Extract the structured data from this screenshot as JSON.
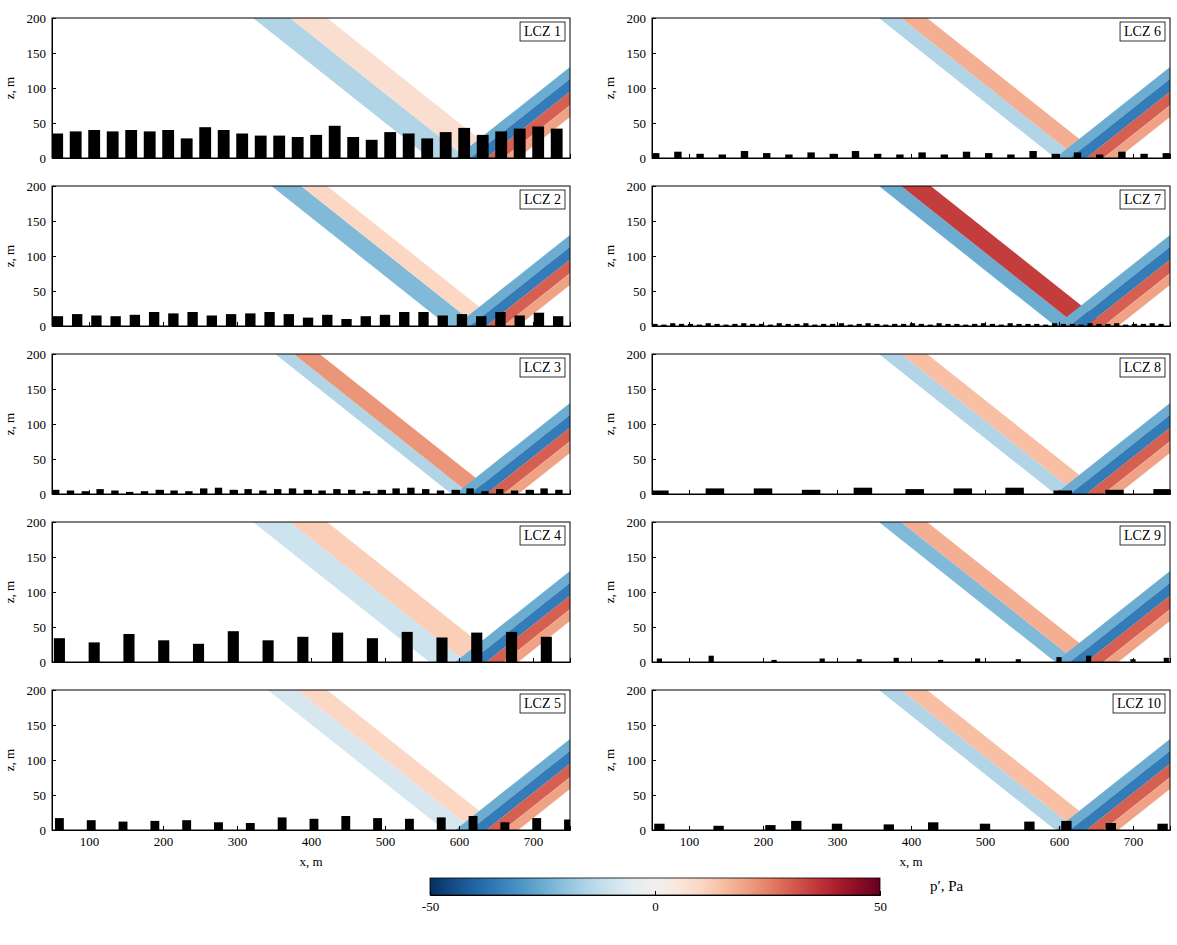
{
  "chart_data": [
    {
      "type": "field",
      "title": "LCZ 1",
      "ylabel": "z, m",
      "xlim": [
        50,
        750
      ],
      "ylim": [
        0,
        200
      ],
      "xticks": [
        100,
        200,
        300,
        400,
        500,
        600,
        700
      ],
      "yticks": [
        0,
        50,
        100,
        150,
        200
      ],
      "tick_labels": "y",
      "angle": 40,
      "buildings": {
        "width": 16,
        "x": [
          57,
          82,
          107,
          132,
          157,
          182,
          207,
          232,
          257,
          282,
          307,
          332,
          357,
          382,
          407,
          432,
          457,
          482,
          507,
          532,
          557,
          582,
          607,
          632,
          657,
          682,
          707,
          732
        ],
        "height": [
          35,
          38,
          40,
          38,
          40,
          38,
          40,
          28,
          44,
          40,
          35,
          32,
          32,
          30,
          33,
          46,
          30,
          26,
          37,
          35,
          28,
          37,
          43,
          33,
          38,
          42,
          45,
          42
        ]
      },
      "incident": [
        {
          "p": -25,
          "x": [
            595,
            615
          ]
        },
        {
          "p": -35,
          "x": [
            615,
            637
          ]
        },
        {
          "p": 30,
          "x": [
            637,
            660
          ]
        },
        {
          "p": 20,
          "x": [
            660,
            680
          ]
        }
      ],
      "reflected": [
        {
          "p": -15,
          "x": [
            560,
            610
          ]
        },
        {
          "p": 8,
          "x": [
            610,
            660
          ]
        }
      ]
    },
    {
      "type": "field",
      "title": "LCZ 2",
      "ylabel": "z, m",
      "xlim": [
        50,
        750
      ],
      "ylim": [
        0,
        200
      ],
      "xticks": [
        100,
        200,
        300,
        400,
        500,
        600,
        700
      ],
      "yticks": [
        0,
        50,
        100,
        150,
        200
      ],
      "tick_labels": "y",
      "angle": 40,
      "buildings": {
        "width": 14,
        "x": [
          58,
          84,
          110,
          136,
          162,
          188,
          214,
          240,
          266,
          292,
          318,
          344,
          370,
          396,
          422,
          448,
          474,
          500,
          526,
          552,
          578,
          604,
          630,
          656,
          682,
          708,
          734
        ],
        "height": [
          14,
          17,
          15,
          14,
          16,
          20,
          18,
          20,
          15,
          17,
          18,
          20,
          17,
          12,
          16,
          10,
          14,
          16,
          20,
          20,
          15,
          17,
          14,
          20,
          15,
          19,
          14
        ]
      },
      "incident": [
        {
          "p": -25,
          "x": [
            595,
            615
          ]
        },
        {
          "p": -35,
          "x": [
            615,
            637
          ]
        },
        {
          "p": 30,
          "x": [
            637,
            660
          ]
        },
        {
          "p": 20,
          "x": [
            660,
            680
          ]
        }
      ],
      "reflected": [
        {
          "p": -22,
          "x": [
            585,
            625
          ]
        },
        {
          "p": 10,
          "x": [
            625,
            660
          ]
        }
      ]
    },
    {
      "type": "field",
      "title": "LCZ 3",
      "ylabel": "z, m",
      "xlim": [
        50,
        750
      ],
      "ylim": [
        0,
        200
      ],
      "xticks": [
        100,
        200,
        300,
        400,
        500,
        600,
        700
      ],
      "yticks": [
        0,
        50,
        100,
        150,
        200
      ],
      "tick_labels": "y",
      "angle": 40,
      "buildings": {
        "width": 10,
        "x": [
          55,
          75,
          95,
          115,
          135,
          155,
          175,
          195,
          215,
          235,
          255,
          275,
          295,
          315,
          335,
          355,
          375,
          395,
          415,
          435,
          455,
          475,
          495,
          515,
          535,
          555,
          575,
          595,
          615,
          635,
          655,
          675,
          695,
          715,
          735
        ],
        "height": [
          6,
          5,
          4,
          7,
          5,
          3,
          4,
          6,
          5,
          4,
          8,
          9,
          6,
          7,
          5,
          7,
          8,
          6,
          5,
          7,
          6,
          4,
          6,
          8,
          9,
          7,
          5,
          6,
          8,
          4,
          7,
          5,
          6,
          8,
          6
        ]
      },
      "incident": [
        {
          "p": -25,
          "x": [
            595,
            615
          ]
        },
        {
          "p": -35,
          "x": [
            615,
            637
          ]
        },
        {
          "p": 30,
          "x": [
            637,
            660
          ]
        },
        {
          "p": 20,
          "x": [
            660,
            680
          ]
        }
      ],
      "reflected": [
        {
          "p": -15,
          "x": [
            590,
            615
          ]
        },
        {
          "p": 22,
          "x": [
            615,
            650
          ]
        }
      ]
    },
    {
      "type": "field",
      "title": "LCZ 4",
      "ylabel": "z, m",
      "xlim": [
        50,
        750
      ],
      "ylim": [
        0,
        200
      ],
      "xticks": [
        100,
        200,
        300,
        400,
        500,
        600,
        700
      ],
      "yticks": [
        0,
        50,
        100,
        150,
        200
      ],
      "tick_labels": "y",
      "angle": 40,
      "buildings": {
        "width": 15,
        "x": [
          60,
          107,
          154,
          201,
          248,
          295,
          342,
          389,
          436,
          483,
          530,
          577,
          624,
          671,
          718
        ],
        "height": [
          34,
          28,
          40,
          31,
          26,
          44,
          31,
          36,
          42,
          34,
          43,
          35,
          42,
          43,
          36
        ]
      },
      "incident": [
        {
          "p": -25,
          "x": [
            595,
            615
          ]
        },
        {
          "p": -35,
          "x": [
            615,
            637
          ]
        },
        {
          "p": 30,
          "x": [
            637,
            660
          ]
        },
        {
          "p": 20,
          "x": [
            660,
            680
          ]
        }
      ],
      "reflected": [
        {
          "p": -10,
          "x": [
            560,
            610
          ]
        },
        {
          "p": 12,
          "x": [
            610,
            660
          ]
        }
      ]
    },
    {
      "type": "field",
      "title": "LCZ 5",
      "xlabel": "x, m",
      "ylabel": "z, m",
      "xlim": [
        50,
        750
      ],
      "ylim": [
        0,
        200
      ],
      "xticks": [
        100,
        200,
        300,
        400,
        500,
        600,
        700
      ],
      "yticks": [
        0,
        50,
        100,
        150,
        200
      ],
      "angle": 40,
      "buildings": {
        "width": 12,
        "x": [
          60,
          103,
          146,
          189,
          232,
          275,
          318,
          361,
          404,
          447,
          490,
          533,
          576,
          619,
          662,
          705,
          748
        ],
        "height": [
          17,
          14,
          12,
          13,
          14,
          11,
          10,
          18,
          16,
          20,
          17,
          16,
          18,
          20,
          11,
          17,
          15
        ]
      },
      "incident": [
        {
          "p": -25,
          "x": [
            595,
            615
          ]
        },
        {
          "p": -35,
          "x": [
            615,
            637
          ]
        },
        {
          "p": 30,
          "x": [
            637,
            660
          ]
        },
        {
          "p": 20,
          "x": [
            660,
            680
          ]
        }
      ],
      "reflected": [
        {
          "p": -8,
          "x": [
            580,
            620
          ]
        },
        {
          "p": 10,
          "x": [
            620,
            660
          ]
        }
      ]
    },
    {
      "type": "field",
      "title": "LCZ 6",
      "ylabel": "z, m",
      "xlim": [
        50,
        750
      ],
      "ylim": [
        0,
        200
      ],
      "xticks": [
        100,
        200,
        300,
        400,
        500,
        600,
        700
      ],
      "yticks": [
        0,
        50,
        100,
        150,
        200
      ],
      "tick_labels": "y",
      "angle": 40,
      "buildings": {
        "width": 10,
        "x": [
          55,
          85,
          115,
          145,
          175,
          205,
          235,
          265,
          295,
          325,
          355,
          385,
          415,
          445,
          475,
          505,
          535,
          565,
          595,
          625,
          655,
          685,
          715,
          745
        ],
        "height": [
          7,
          9,
          6,
          5,
          10,
          7,
          5,
          8,
          6,
          10,
          6,
          5,
          8,
          5,
          9,
          7,
          5,
          10,
          6,
          8,
          5,
          9,
          6,
          7
        ]
      },
      "incident": [
        {
          "p": -25,
          "x": [
            595,
            615
          ]
        },
        {
          "p": -35,
          "x": [
            615,
            637
          ]
        },
        {
          "p": 30,
          "x": [
            637,
            660
          ]
        },
        {
          "p": 20,
          "x": [
            660,
            680
          ]
        }
      ],
      "reflected": [
        {
          "p": -15,
          "x": [
            595,
            625
          ]
        },
        {
          "p": 18,
          "x": [
            625,
            660
          ]
        }
      ]
    },
    {
      "type": "field",
      "title": "LCZ 7",
      "ylabel": "z, m",
      "xlim": [
        50,
        750
      ],
      "ylim": [
        0,
        200
      ],
      "xticks": [
        100,
        200,
        300,
        400,
        500,
        600,
        700
      ],
      "yticks": [
        0,
        50,
        100,
        150,
        200
      ],
      "tick_labels": "y",
      "angle": 40,
      "buildings": {
        "width": 7,
        "x": [
          54,
          66,
          78,
          90,
          102,
          114,
          126,
          138,
          150,
          162,
          174,
          186,
          198,
          210,
          222,
          234,
          246,
          258,
          270,
          282,
          294,
          306,
          318,
          330,
          342,
          354,
          366,
          378,
          390,
          402,
          414,
          426,
          438,
          450,
          462,
          474,
          486,
          498,
          510,
          522,
          534,
          546,
          558,
          570,
          582,
          594,
          606,
          618,
          630,
          642,
          654,
          666,
          678,
          690,
          702,
          714,
          726,
          738
        ],
        "height": [
          3,
          2,
          4,
          3,
          3,
          2,
          4,
          3,
          2,
          3,
          4,
          3,
          3,
          2,
          4,
          3,
          3,
          4,
          2,
          3,
          3,
          4,
          2,
          3,
          4,
          3,
          2,
          3,
          3,
          4,
          3,
          2,
          4,
          3,
          3,
          2,
          3,
          4,
          3,
          2,
          4,
          3,
          3,
          3,
          2,
          4,
          3,
          3,
          2,
          4,
          3,
          3,
          4,
          2,
          3,
          3,
          4,
          3
        ]
      },
      "incident": [
        {
          "p": -25,
          "x": [
            595,
            615
          ]
        },
        {
          "p": -35,
          "x": [
            615,
            637
          ]
        },
        {
          "p": 30,
          "x": [
            637,
            660
          ]
        },
        {
          "p": 20,
          "x": [
            660,
            680
          ]
        }
      ],
      "reflected": [
        {
          "p": -25,
          "x": [
            595,
            625
          ]
        },
        {
          "p": 35,
          "x": [
            625,
            665
          ]
        }
      ]
    },
    {
      "type": "field",
      "title": "LCZ 8",
      "ylabel": "z, m",
      "xlim": [
        50,
        750
      ],
      "ylim": [
        0,
        200
      ],
      "xticks": [
        100,
        200,
        300,
        400,
        500,
        600,
        700
      ],
      "yticks": [
        0,
        50,
        100,
        150,
        200
      ],
      "tick_labels": "y",
      "angle": 40,
      "buildings": {
        "width": 25,
        "x": [
          60,
          135,
          200,
          265,
          335,
          405,
          470,
          540,
          605,
          675,
          740
        ],
        "height": [
          5,
          8,
          8,
          6,
          9,
          7,
          8,
          9,
          5,
          6,
          7
        ]
      },
      "incident": [
        {
          "p": -25,
          "x": [
            595,
            615
          ]
        },
        {
          "p": -35,
          "x": [
            615,
            637
          ]
        },
        {
          "p": 30,
          "x": [
            637,
            660
          ]
        },
        {
          "p": 20,
          "x": [
            660,
            680
          ]
        }
      ],
      "reflected": [
        {
          "p": -15,
          "x": [
            595,
            625
          ]
        },
        {
          "p": 15,
          "x": [
            625,
            660
          ]
        }
      ]
    },
    {
      "type": "field",
      "title": "LCZ 9",
      "ylabel": "z, m",
      "xlim": [
        50,
        750
      ],
      "ylim": [
        0,
        200
      ],
      "xticks": [
        100,
        200,
        300,
        400,
        500,
        600,
        700
      ],
      "yticks": [
        0,
        50,
        100,
        150,
        200
      ],
      "tick_labels": "y",
      "angle": 40,
      "buildings": {
        "width": 7,
        "x": [
          60,
          130,
          215,
          280,
          330,
          380,
          440,
          490,
          545,
          600,
          640,
          700,
          745
        ],
        "height": [
          5,
          9,
          3,
          5,
          4,
          6,
          3,
          5,
          4,
          7,
          9,
          4,
          6
        ]
      },
      "incident": [
        {
          "p": -25,
          "x": [
            595,
            615
          ]
        },
        {
          "p": -35,
          "x": [
            615,
            637
          ]
        },
        {
          "p": 30,
          "x": [
            637,
            660
          ]
        },
        {
          "p": 20,
          "x": [
            660,
            680
          ]
        }
      ],
      "reflected": [
        {
          "p": -22,
          "x": [
            595,
            625
          ]
        },
        {
          "p": 18,
          "x": [
            625,
            660
          ]
        }
      ]
    },
    {
      "type": "field",
      "title": "LCZ 10",
      "xlabel": "x, m",
      "ylabel": "z, m",
      "xlim": [
        50,
        750
      ],
      "ylim": [
        0,
        200
      ],
      "xticks": [
        100,
        200,
        300,
        400,
        500,
        600,
        700
      ],
      "yticks": [
        0,
        50,
        100,
        150,
        200
      ],
      "angle": 40,
      "buildings": {
        "width": 14,
        "x": [
          60,
          140,
          210,
          245,
          300,
          370,
          430,
          500,
          560,
          610,
          670,
          740
        ],
        "height": [
          9,
          6,
          7,
          13,
          9,
          8,
          11,
          9,
          12,
          13,
          10,
          9
        ]
      },
      "incident": [
        {
          "p": -25,
          "x": [
            595,
            615
          ]
        },
        {
          "p": -35,
          "x": [
            615,
            637
          ]
        },
        {
          "p": 30,
          "x": [
            637,
            660
          ]
        },
        {
          "p": 20,
          "x": [
            660,
            680
          ]
        }
      ],
      "reflected": [
        {
          "p": -15,
          "x": [
            595,
            625
          ]
        },
        {
          "p": 15,
          "x": [
            625,
            660
          ]
        }
      ]
    }
  ],
  "colorbar": {
    "range": [
      -50,
      50
    ],
    "ticks": [
      -50,
      0,
      50
    ],
    "label": "p′, Pa"
  }
}
